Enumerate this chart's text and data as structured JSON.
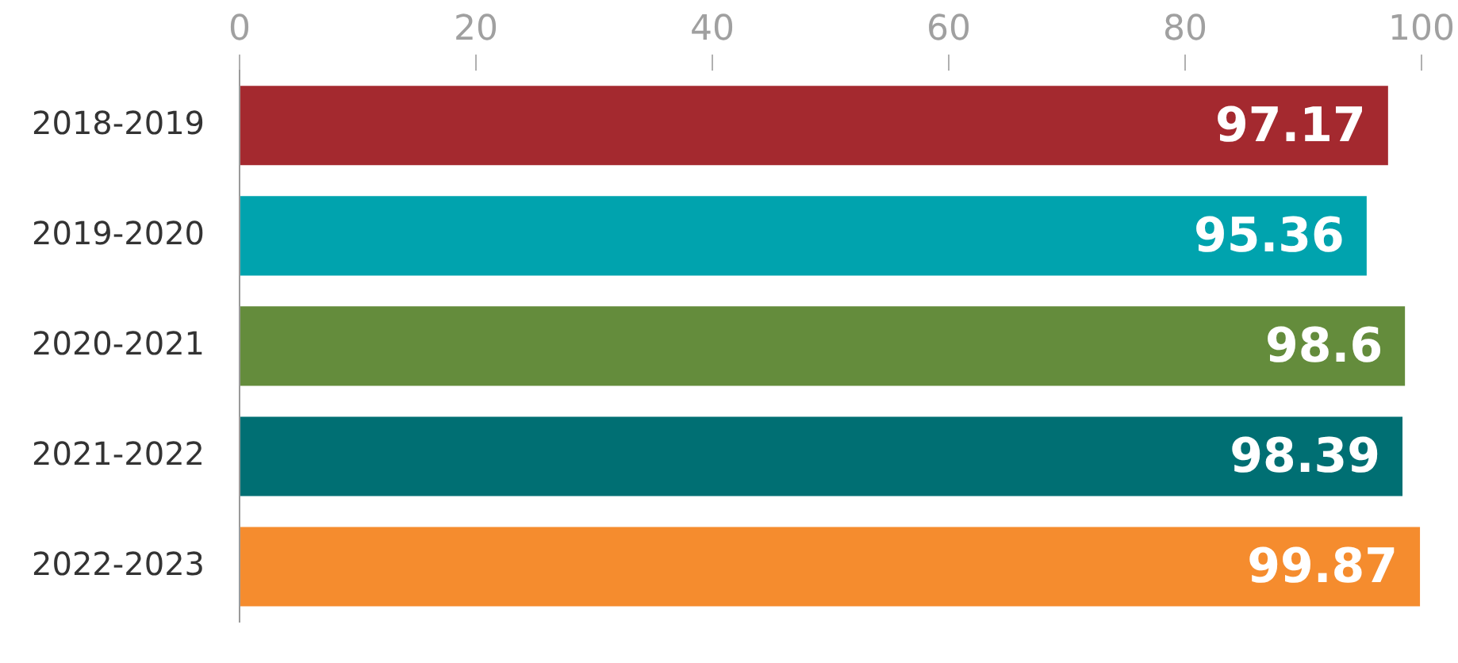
{
  "chart_data": {
    "type": "bar",
    "orientation": "horizontal",
    "categories": [
      "2018-2019",
      "2019-2020",
      "2020-2021",
      "2021-2022",
      "2022-2023"
    ],
    "values": [
      97.17,
      95.36,
      98.6,
      98.39,
      99.87
    ],
    "colors": [
      "#a4292f",
      "#00a3ae",
      "#648c3c",
      "#006f73",
      "#f58c2e"
    ],
    "xlim": [
      0,
      100
    ],
    "xticks": [
      0,
      20,
      40,
      60,
      80,
      100
    ],
    "grid": false,
    "legend": false,
    "data_labels": true
  }
}
